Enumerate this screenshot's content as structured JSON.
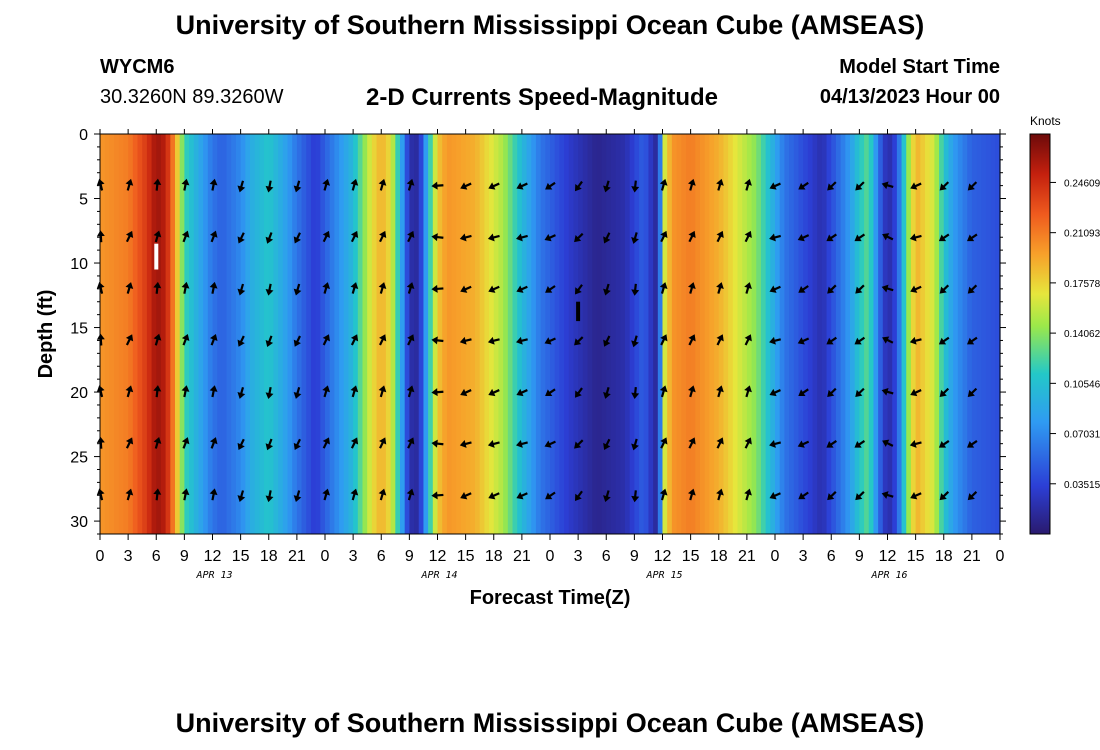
{
  "title": "University of Southern Mississippi Ocean Cube (AMSEAS)",
  "station": "WYCM6",
  "coords": "30.3260N  89.3260W",
  "subtitle": "2-D Currents Speed-Magnitude",
  "model_start_label": "Model Start Time",
  "model_start_value": "04/13/2023 Hour 00",
  "chart_data": {
    "type": "heatmap",
    "title": "2-D Currents Speed-Magnitude",
    "xlabel": "Forecast Time(Z)",
    "ylabel": "Depth (ft)",
    "x_range_hours": [
      0,
      96
    ],
    "ylim": [
      31,
      0
    ],
    "x_tick_labels": [
      "0",
      "3",
      "6",
      "9",
      "12",
      "15",
      "18",
      "21",
      "0",
      "3",
      "6",
      "9",
      "12",
      "15",
      "18",
      "21",
      "0",
      "3",
      "6",
      "9",
      "12",
      "15",
      "18",
      "21",
      "0",
      "3",
      "6",
      "9",
      "12",
      "15",
      "18",
      "21",
      "0"
    ],
    "y_ticks": [
      0,
      5,
      10,
      15,
      20,
      25,
      30
    ],
    "day_labels": [
      {
        "label": "APR 13",
        "hour": 12
      },
      {
        "label": "APR 14",
        "hour": 36
      },
      {
        "label": "APR 15",
        "hour": 60
      },
      {
        "label": "APR 16",
        "hour": 84
      }
    ],
    "colorbar": {
      "label": "Knots",
      "min": 0.0,
      "max": 0.28,
      "ticks": [
        "0.24609",
        "0.21093",
        "0.17578",
        "0.14062",
        "0.10546",
        "0.07031",
        "0.03515"
      ],
      "tick_values": [
        0.24609,
        0.21093,
        0.17578,
        0.14062,
        0.10546,
        0.07031,
        0.03515
      ]
    },
    "speed_profile_hours": [
      0,
      3,
      5,
      6,
      7,
      8,
      9,
      10,
      11,
      12,
      13,
      15,
      16,
      18,
      20,
      21,
      23,
      24,
      27,
      29,
      30,
      31,
      32,
      33,
      34,
      35,
      36,
      37,
      40,
      43,
      45,
      47,
      50,
      53,
      56,
      58,
      59,
      59.6,
      60,
      61,
      63,
      66,
      70,
      73,
      75,
      77,
      78,
      79,
      80,
      81,
      82,
      83,
      84,
      85,
      86,
      87,
      89,
      90,
      91,
      93,
      96
    ],
    "speed_profile_knots": [
      0.2,
      0.21,
      0.24,
      0.265,
      0.255,
      0.2,
      0.12,
      0.1,
      0.08,
      0.06,
      0.05,
      0.07,
      0.09,
      0.11,
      0.08,
      0.06,
      0.03,
      0.05,
      0.1,
      0.17,
      0.19,
      0.17,
      0.1,
      0.02,
      0.015,
      0.1,
      0.18,
      0.2,
      0.19,
      0.15,
      0.1,
      0.06,
      0.03,
      0.01,
      0.02,
      0.05,
      0.02,
      0.01,
      0.15,
      0.2,
      0.21,
      0.19,
      0.14,
      0.06,
      0.04,
      0.02,
      0.04,
      0.06,
      0.08,
      0.11,
      0.13,
      0.06,
      0.015,
      0.04,
      0.13,
      0.19,
      0.16,
      0.11,
      0.08,
      0.05,
      0.04
    ],
    "arrow_directions_deg": [
      350,
      20,
      10,
      15,
      15,
      200,
      195,
      200,
      20,
      20,
      20,
      20,
      270,
      250,
      250,
      250,
      240,
      220,
      200,
      190,
      20,
      20,
      20,
      20,
      250,
      240,
      230,
      230,
      290,
      250,
      230,
      230,
      20,
      20,
      20,
      20
    ],
    "arrow_depths": [
      4,
      8,
      12,
      16,
      20,
      24,
      28
    ],
    "white_markers": [
      {
        "hour": 6,
        "depth_top": 8.5,
        "depth_bottom": 10.5
      },
      {
        "hour": 51,
        "depth_top": 13,
        "depth_bottom": 14.5
      }
    ]
  }
}
